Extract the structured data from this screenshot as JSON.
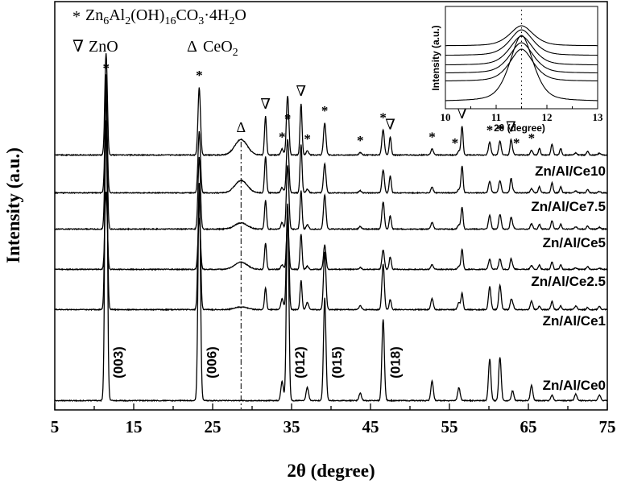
{
  "chart_data": {
    "type": "line",
    "xlabel": "2θ (degree)",
    "ylabel": "Intensity (a.u.)",
    "xlim": [
      5,
      75
    ],
    "x_ticks": [
      "5",
      "15",
      "25",
      "35",
      "45",
      "55",
      "65",
      "75"
    ],
    "dashed_reference_x": 28.6,
    "legend": {
      "hydrotalcite": {
        "symbol": "*",
        "text": "Zn6Al2(OH)16CO3·4H2O"
      },
      "zno": {
        "symbol": "∇",
        "text": "ZnO"
      },
      "ceo2": {
        "symbol": "Δ",
        "text": "CeO2"
      }
    },
    "series": [
      {
        "name": "Zn/Al/Ce0",
        "color": "#000000"
      },
      {
        "name": "Zn/Al/Ce1",
        "color": "#000000"
      },
      {
        "name": "Zn/Al/Ce2.5",
        "color": "#000000"
      },
      {
        "name": "Zn/Al/Ce5",
        "color": "#000000"
      },
      {
        "name": "Zn/Al/Ce7.5",
        "color": "#000000"
      },
      {
        "name": "Zn/Al/Ce10",
        "color": "#000000"
      }
    ],
    "peaks_2theta": {
      "hydrotalcite": [
        11.5,
        23.3,
        33.8,
        34.5,
        37.0,
        39.2,
        43.7,
        46.6,
        52.8,
        56.2,
        60.1,
        61.4,
        63.0,
        65.4
      ],
      "zno": [
        31.7,
        36.2,
        47.5,
        56.6,
        62.8
      ],
      "ceo2": [
        28.6
      ]
    },
    "hkl_labels": [
      {
        "text": "(003)",
        "x": 11.5
      },
      {
        "text": "(006)",
        "x": 23.3
      },
      {
        "text": "(012)",
        "x": 34.5
      },
      {
        "text": "(015)",
        "x": 39.2
      },
      {
        "text": "(018)",
        "x": 46.6
      }
    ],
    "top_markers": [
      {
        "symbol": "*",
        "x": 11.5
      },
      {
        "symbol": "*",
        "x": 23.3
      },
      {
        "symbol": "Δ",
        "x": 28.6
      },
      {
        "symbol": "∇",
        "x": 31.7
      },
      {
        "symbol": "*",
        "x": 33.8
      },
      {
        "symbol": "*",
        "x": 34.5
      },
      {
        "symbol": "∇",
        "x": 36.2
      },
      {
        "symbol": "*",
        "x": 37.0
      },
      {
        "symbol": "*",
        "x": 39.2
      },
      {
        "symbol": "*",
        "x": 43.7
      },
      {
        "symbol": "*",
        "x": 46.6
      },
      {
        "symbol": "∇",
        "x": 47.5
      },
      {
        "symbol": "*",
        "x": 52.8
      },
      {
        "symbol": "*",
        "x": 55.7
      },
      {
        "symbol": "∇",
        "x": 56.6
      },
      {
        "symbol": "*",
        "x": 60.1
      },
      {
        "symbol": "*",
        "x": 61.4
      },
      {
        "symbol": "∇",
        "x": 62.8
      },
      {
        "symbol": "*",
        "x": 63.5
      },
      {
        "symbol": "*",
        "x": 65.4
      }
    ],
    "inset": {
      "xlabel": "2θ (degree)",
      "ylabel": "Intensity (a.u.)",
      "xlim": [
        10,
        13
      ],
      "x_ticks": [
        "10",
        "11",
        "12",
        "13"
      ],
      "peak_x": 11.5
    }
  }
}
